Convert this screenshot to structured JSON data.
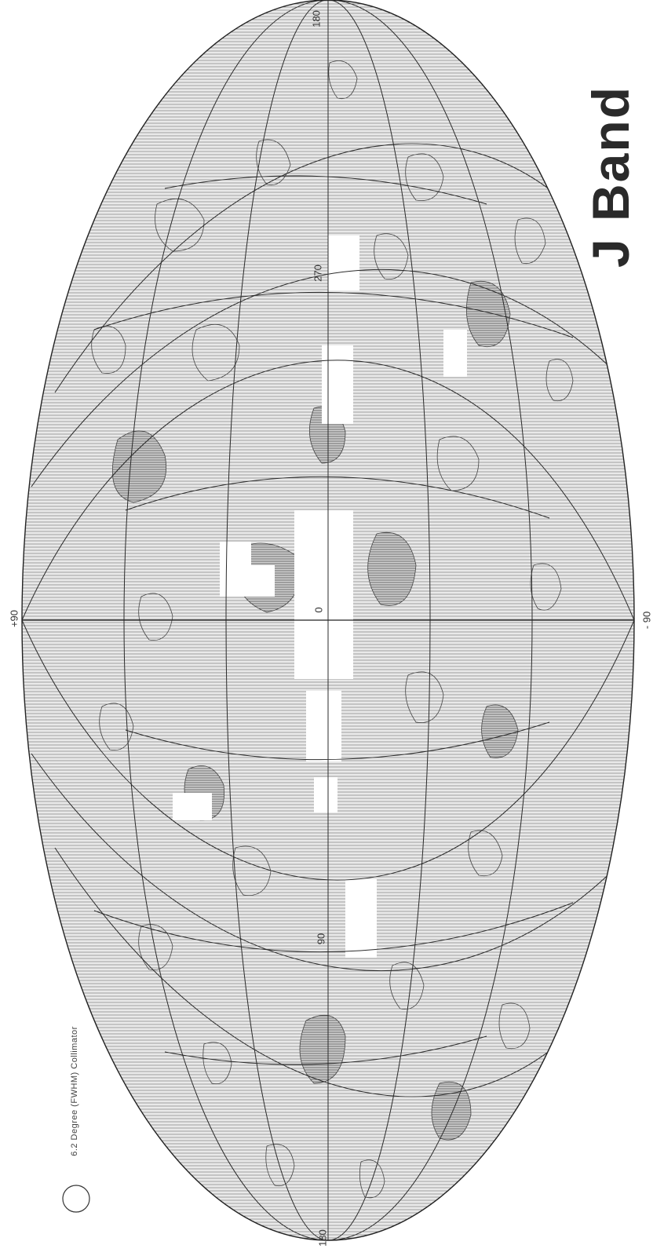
{
  "map": {
    "title": "J Band",
    "collimator_label": "6.2  Degree (FWHM) Collimator",
    "pole_labels": {
      "north": "+90",
      "south": "- 90"
    },
    "longitude_labels": {
      "top": "180",
      "l270": "270",
      "l0": "0",
      "l90": "90",
      "bottom": "180"
    }
  },
  "style": {
    "line_color": "#2b2b2b",
    "hatch_color": "#7a7a7a",
    "background": "#ffffff"
  }
}
